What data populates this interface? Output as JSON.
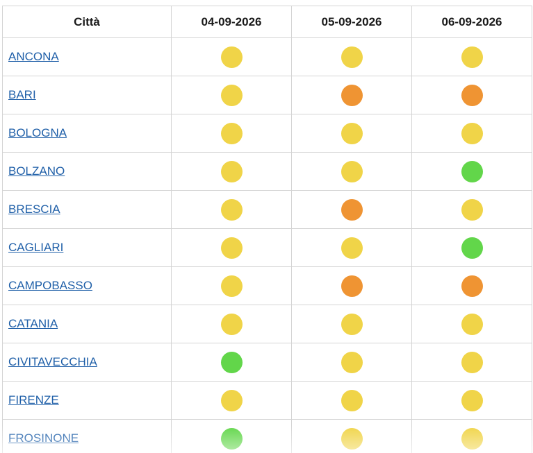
{
  "table": {
    "header": {
      "city": "Città",
      "dates": [
        "04-09-2026",
        "05-09-2026",
        "06-09-2026"
      ]
    },
    "colors": {
      "yellow": "#f0d448",
      "orange": "#ef9433",
      "green": "#62d64a"
    },
    "rows": [
      {
        "city": "ANCONA",
        "levels": [
          "yellow",
          "yellow",
          "yellow"
        ]
      },
      {
        "city": "BARI",
        "levels": [
          "yellow",
          "orange",
          "orange"
        ]
      },
      {
        "city": "BOLOGNA",
        "levels": [
          "yellow",
          "yellow",
          "yellow"
        ]
      },
      {
        "city": "BOLZANO",
        "levels": [
          "yellow",
          "yellow",
          "green"
        ]
      },
      {
        "city": "BRESCIA",
        "levels": [
          "yellow",
          "orange",
          "yellow"
        ]
      },
      {
        "city": "CAGLIARI",
        "levels": [
          "yellow",
          "yellow",
          "green"
        ]
      },
      {
        "city": "CAMPOBASSO",
        "levels": [
          "yellow",
          "orange",
          "orange"
        ]
      },
      {
        "city": "CATANIA",
        "levels": [
          "yellow",
          "yellow",
          "yellow"
        ]
      },
      {
        "city": "CIVITAVECCHIA",
        "levels": [
          "green",
          "yellow",
          "yellow"
        ]
      },
      {
        "city": "FIRENZE",
        "levels": [
          "yellow",
          "yellow",
          "yellow"
        ]
      },
      {
        "city": "FROSINONE",
        "levels": [
          "green",
          "yellow",
          "yellow"
        ]
      }
    ]
  }
}
